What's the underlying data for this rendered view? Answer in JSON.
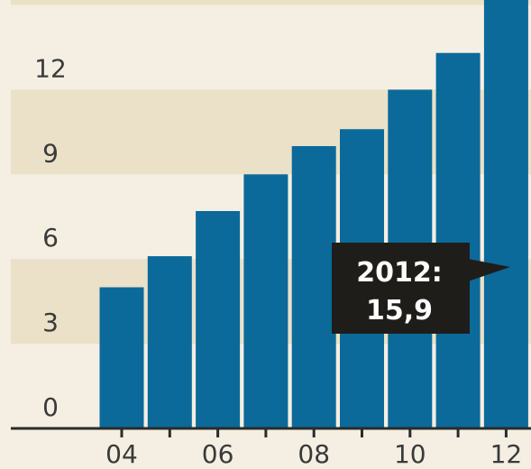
{
  "colors": {
    "background": "#f4efe2",
    "band": "#ebe1c8",
    "bar": "#0b6a9a",
    "axis": "#2b2b2b",
    "callout_bg": "#1f1d1a",
    "callout_text": "#ffffff"
  },
  "chart_data": {
    "type": "bar",
    "title": "",
    "xlabel": "",
    "ylabel": "",
    "x": [
      2004,
      2005,
      2006,
      2007,
      2008,
      2009,
      2010,
      2011,
      2012
    ],
    "values": [
      5.0,
      6.1,
      7.7,
      9.0,
      10.0,
      10.6,
      12.0,
      13.3,
      15.9
    ],
    "ylim": [
      0,
      15.9
    ],
    "yticks": [
      "0",
      "3",
      "6",
      "9",
      "12"
    ],
    "xticks": [
      "04",
      "06",
      "08",
      "10",
      "12"
    ],
    "grid": "alternating horizontal bands",
    "callout": {
      "line1": "2012:",
      "line2": "15,9"
    }
  }
}
